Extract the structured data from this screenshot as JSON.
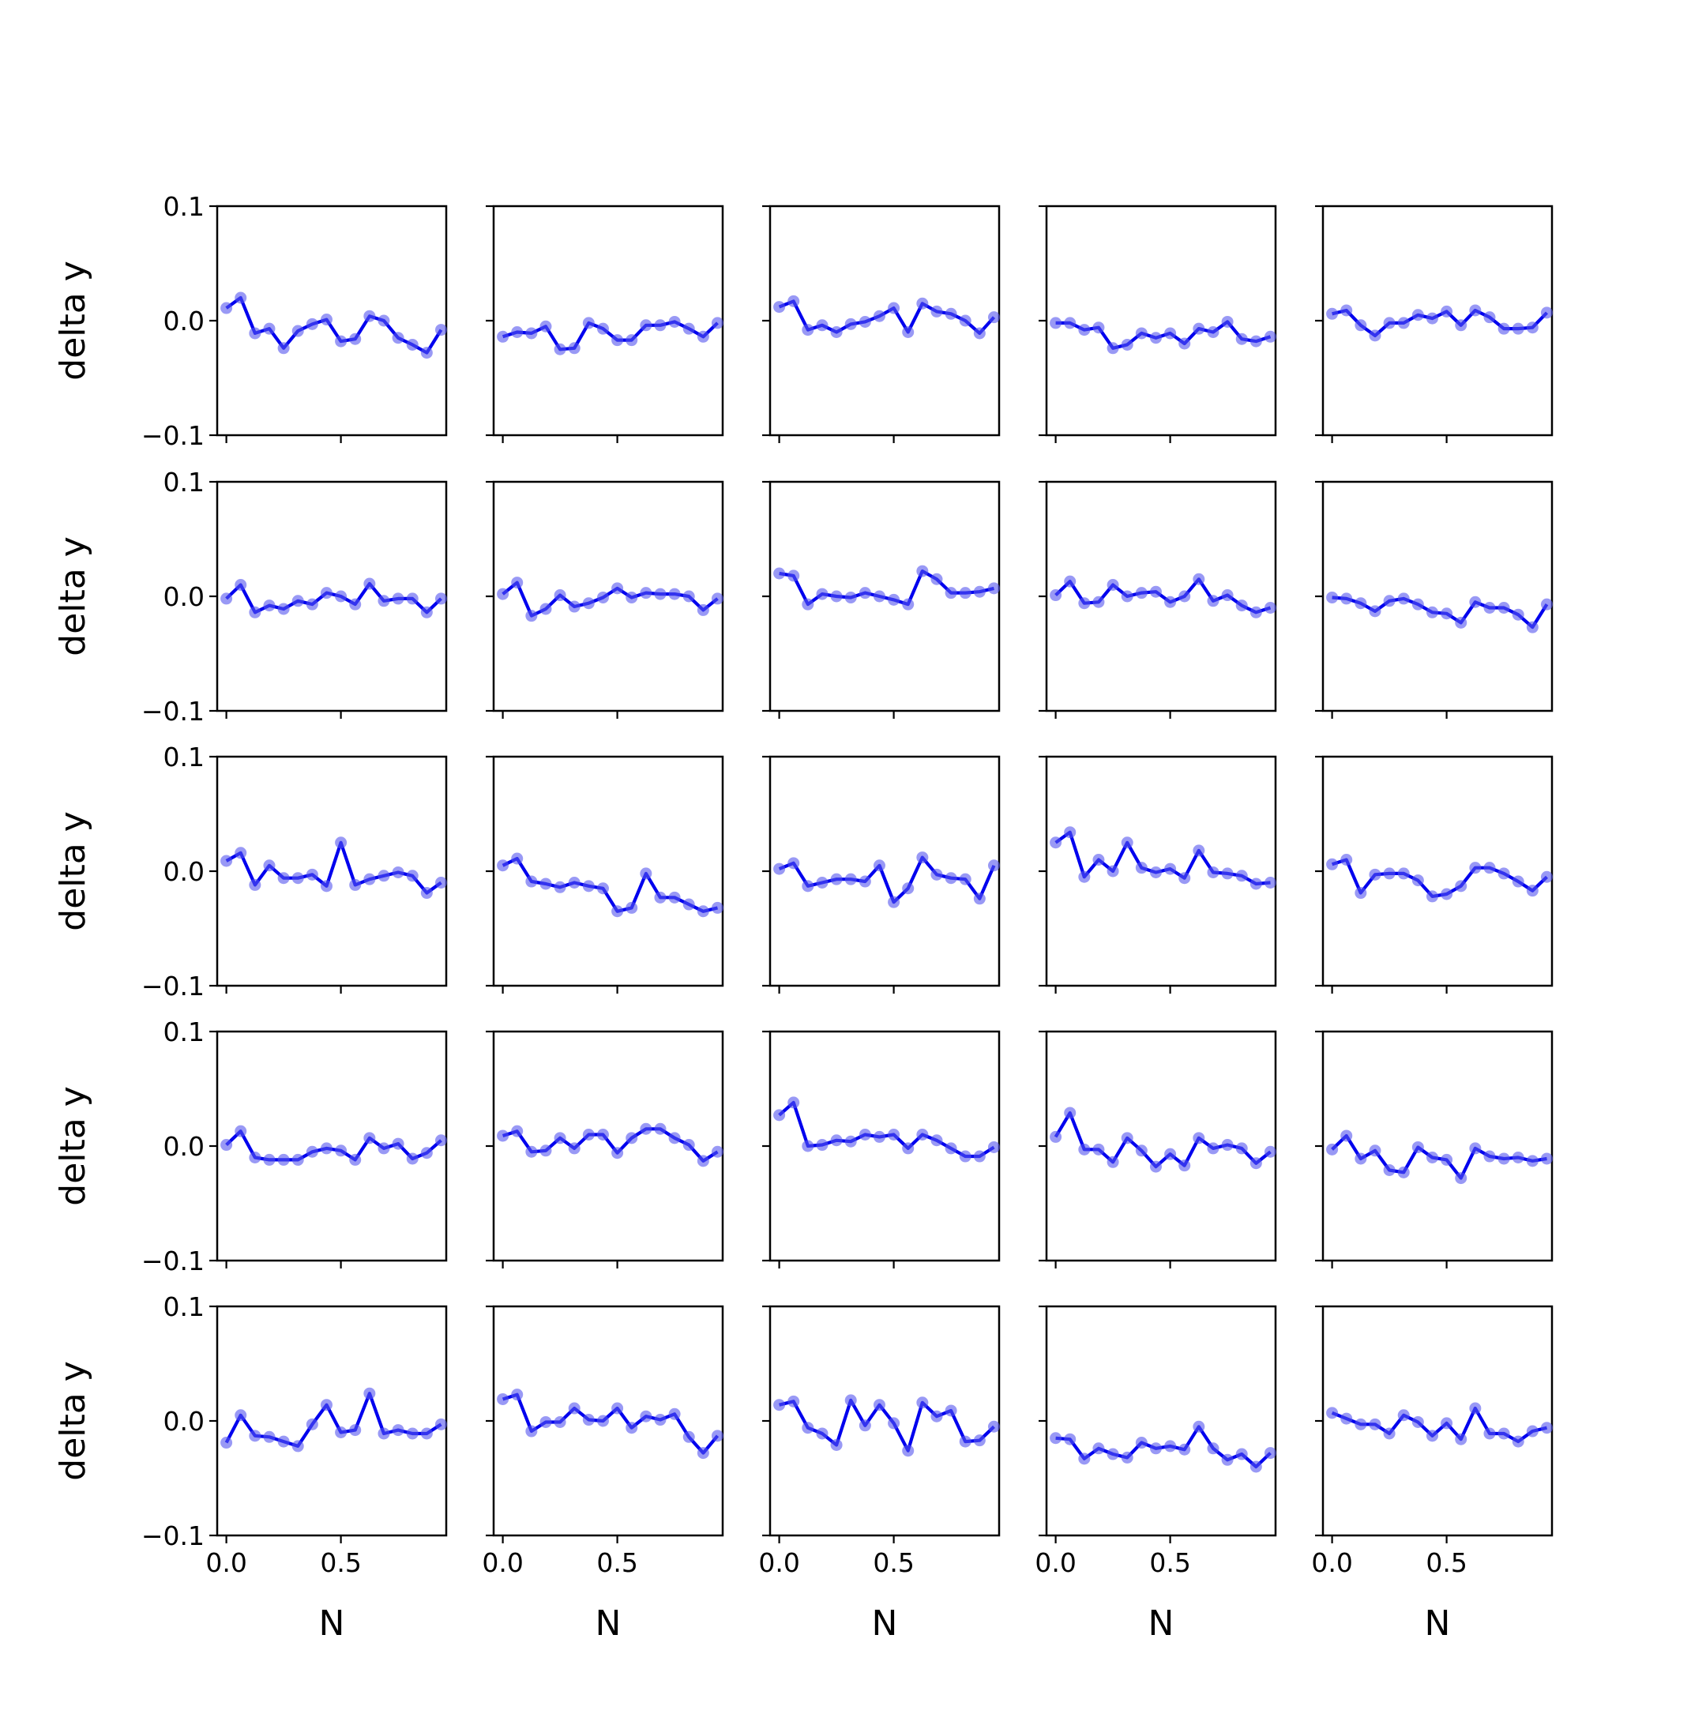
{
  "figure": {
    "rows": 5,
    "cols": 5,
    "line_color": "#0000ee",
    "marker_color": "#5555ee",
    "axis_color": "#000000",
    "background": "#ffffff"
  },
  "chart_data": {
    "type": "line",
    "layout": "5x5 small multiples, shared x and y axes",
    "xlabel": "N",
    "ylabel": "delta y",
    "xlim": [
      -0.04,
      0.96
    ],
    "ylim": [
      -0.1,
      0.1
    ],
    "xticks": [
      0.0,
      0.5
    ],
    "xtick_labels": [
      "0.0",
      "0.5"
    ],
    "yticks": [
      -0.1,
      0.0,
      0.1
    ],
    "ytick_labels": [
      "−0.1",
      "0.0",
      "0.1"
    ],
    "grid": false,
    "x": [
      0.0,
      0.0625,
      0.125,
      0.1875,
      0.25,
      0.3125,
      0.375,
      0.4375,
      0.5,
      0.5625,
      0.625,
      0.6875,
      0.75,
      0.8125,
      0.875,
      0.9375
    ],
    "panels": [
      {
        "row": 1,
        "col": 1,
        "y": [
          0.011,
          0.02,
          -0.011,
          -0.007,
          -0.024,
          -0.009,
          -0.003,
          0.001,
          -0.018,
          -0.016,
          0.004,
          0.0,
          -0.015,
          -0.021,
          -0.028,
          -0.008
        ]
      },
      {
        "row": 1,
        "col": 2,
        "y": [
          -0.014,
          -0.01,
          -0.011,
          -0.005,
          -0.025,
          -0.024,
          -0.002,
          -0.007,
          -0.017,
          -0.017,
          -0.004,
          -0.004,
          -0.001,
          -0.007,
          -0.014,
          -0.002
        ]
      },
      {
        "row": 1,
        "col": 3,
        "y": [
          0.012,
          0.017,
          -0.008,
          -0.004,
          -0.01,
          -0.003,
          -0.001,
          0.004,
          0.011,
          -0.01,
          0.015,
          0.008,
          0.006,
          0.0,
          -0.011,
          0.003
        ]
      },
      {
        "row": 1,
        "col": 4,
        "y": [
          -0.002,
          -0.002,
          -0.008,
          -0.006,
          -0.024,
          -0.021,
          -0.011,
          -0.015,
          -0.011,
          -0.02,
          -0.007,
          -0.01,
          -0.001,
          -0.016,
          -0.018,
          -0.014
        ]
      },
      {
        "row": 1,
        "col": 5,
        "y": [
          0.006,
          0.009,
          -0.004,
          -0.013,
          -0.002,
          -0.002,
          0.005,
          0.002,
          0.008,
          -0.004,
          0.009,
          0.003,
          -0.007,
          -0.007,
          -0.006,
          0.007
        ]
      },
      {
        "row": 2,
        "col": 1,
        "y": [
          -0.002,
          0.01,
          -0.014,
          -0.008,
          -0.011,
          -0.004,
          -0.007,
          0.003,
          0.0,
          -0.007,
          0.011,
          -0.004,
          -0.002,
          -0.002,
          -0.014,
          -0.002
        ]
      },
      {
        "row": 2,
        "col": 2,
        "y": [
          0.002,
          0.012,
          -0.017,
          -0.011,
          0.001,
          -0.009,
          -0.006,
          -0.001,
          0.007,
          -0.001,
          0.003,
          0.002,
          0.002,
          0.0,
          -0.012,
          -0.002
        ]
      },
      {
        "row": 2,
        "col": 3,
        "y": [
          0.02,
          0.018,
          -0.007,
          0.002,
          0.0,
          -0.001,
          0.003,
          0.0,
          -0.003,
          -0.007,
          0.022,
          0.015,
          0.003,
          0.003,
          0.004,
          0.007
        ]
      },
      {
        "row": 2,
        "col": 4,
        "y": [
          0.001,
          0.013,
          -0.006,
          -0.005,
          0.01,
          0.0,
          0.003,
          0.004,
          -0.005,
          0.0,
          0.015,
          -0.004,
          0.001,
          -0.008,
          -0.014,
          -0.01
        ]
      },
      {
        "row": 2,
        "col": 5,
        "y": [
          -0.001,
          -0.002,
          -0.006,
          -0.013,
          -0.004,
          -0.002,
          -0.007,
          -0.014,
          -0.015,
          -0.023,
          -0.005,
          -0.01,
          -0.01,
          -0.016,
          -0.027,
          -0.007
        ]
      },
      {
        "row": 3,
        "col": 1,
        "y": [
          0.009,
          0.016,
          -0.012,
          0.005,
          -0.006,
          -0.006,
          -0.003,
          -0.013,
          0.025,
          -0.012,
          -0.007,
          -0.004,
          -0.001,
          -0.004,
          -0.019,
          -0.01
        ]
      },
      {
        "row": 3,
        "col": 2,
        "y": [
          0.005,
          0.011,
          -0.009,
          -0.011,
          -0.014,
          -0.01,
          -0.013,
          -0.015,
          -0.035,
          -0.032,
          -0.002,
          -0.023,
          -0.023,
          -0.029,
          -0.035,
          -0.032
        ]
      },
      {
        "row": 3,
        "col": 3,
        "y": [
          0.002,
          0.007,
          -0.013,
          -0.01,
          -0.007,
          -0.007,
          -0.009,
          0.005,
          -0.027,
          -0.015,
          0.012,
          -0.003,
          -0.006,
          -0.007,
          -0.024,
          0.005
        ]
      },
      {
        "row": 3,
        "col": 4,
        "y": [
          0.025,
          0.034,
          -0.005,
          0.01,
          0.0,
          0.025,
          0.003,
          -0.001,
          0.002,
          -0.006,
          0.018,
          -0.001,
          -0.002,
          -0.004,
          -0.011,
          -0.01
        ]
      },
      {
        "row": 3,
        "col": 5,
        "y": [
          0.006,
          0.01,
          -0.019,
          -0.003,
          -0.002,
          -0.002,
          -0.008,
          -0.022,
          -0.02,
          -0.013,
          0.003,
          0.003,
          -0.002,
          -0.009,
          -0.017,
          -0.005
        ]
      },
      {
        "row": 4,
        "col": 1,
        "y": [
          0.001,
          0.013,
          -0.01,
          -0.012,
          -0.012,
          -0.012,
          -0.005,
          -0.002,
          -0.004,
          -0.012,
          0.007,
          -0.002,
          0.002,
          -0.011,
          -0.006,
          0.005
        ]
      },
      {
        "row": 4,
        "col": 2,
        "y": [
          0.009,
          0.013,
          -0.005,
          -0.004,
          0.007,
          -0.002,
          0.01,
          0.01,
          -0.006,
          0.007,
          0.015,
          0.015,
          0.007,
          0.001,
          -0.013,
          -0.005
        ]
      },
      {
        "row": 4,
        "col": 3,
        "y": [
          0.027,
          0.038,
          0.0,
          0.001,
          0.005,
          0.004,
          0.01,
          0.008,
          0.01,
          -0.002,
          0.01,
          0.005,
          -0.002,
          -0.009,
          -0.009,
          -0.001
        ]
      },
      {
        "row": 4,
        "col": 4,
        "y": [
          0.008,
          0.029,
          -0.003,
          -0.003,
          -0.014,
          0.007,
          -0.004,
          -0.018,
          -0.007,
          -0.017,
          0.007,
          -0.002,
          0.001,
          -0.002,
          -0.015,
          -0.005
        ]
      },
      {
        "row": 4,
        "col": 5,
        "y": [
          -0.003,
          0.009,
          -0.011,
          -0.004,
          -0.021,
          -0.023,
          -0.001,
          -0.01,
          -0.012,
          -0.028,
          -0.002,
          -0.009,
          -0.011,
          -0.01,
          -0.013,
          -0.011
        ]
      },
      {
        "row": 5,
        "col": 1,
        "y": [
          -0.019,
          0.005,
          -0.013,
          -0.014,
          -0.018,
          -0.022,
          -0.003,
          0.014,
          -0.01,
          -0.008,
          0.024,
          -0.011,
          -0.008,
          -0.011,
          -0.011,
          -0.003
        ]
      },
      {
        "row": 5,
        "col": 2,
        "y": [
          0.019,
          0.023,
          -0.009,
          -0.001,
          -0.001,
          0.011,
          0.001,
          0.0,
          0.011,
          -0.006,
          0.004,
          0.001,
          0.006,
          -0.014,
          -0.028,
          -0.013
        ]
      },
      {
        "row": 5,
        "col": 3,
        "y": [
          0.014,
          0.017,
          -0.006,
          -0.011,
          -0.021,
          0.018,
          -0.004,
          0.014,
          -0.002,
          -0.026,
          0.016,
          0.004,
          0.009,
          -0.018,
          -0.017,
          -0.005
        ]
      },
      {
        "row": 5,
        "col": 4,
        "y": [
          -0.015,
          -0.016,
          -0.033,
          -0.024,
          -0.029,
          -0.032,
          -0.019,
          -0.024,
          -0.022,
          -0.025,
          -0.005,
          -0.024,
          -0.034,
          -0.029,
          -0.04,
          -0.028
        ]
      },
      {
        "row": 5,
        "col": 5,
        "y": [
          0.007,
          0.002,
          -0.003,
          -0.003,
          -0.011,
          0.005,
          -0.001,
          -0.013,
          -0.002,
          -0.016,
          0.011,
          -0.011,
          -0.011,
          -0.018,
          -0.009,
          -0.006
        ]
      }
    ]
  }
}
